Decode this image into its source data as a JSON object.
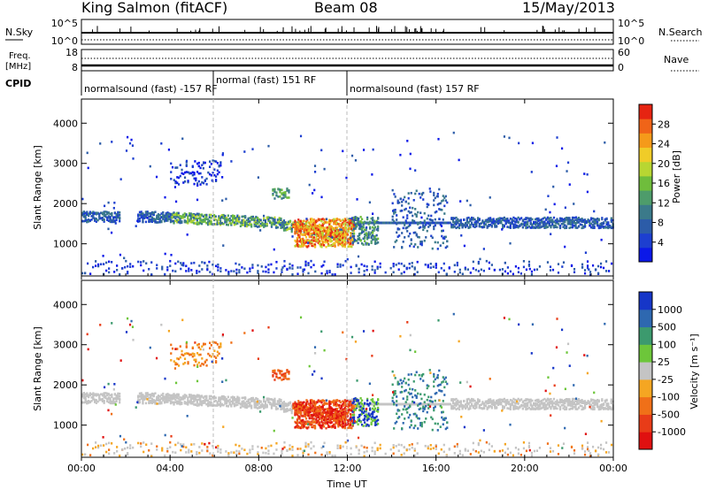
{
  "header": {
    "station": "King Salmon (fitACF)",
    "beam": "Beam 08",
    "date": "15/May/2013"
  },
  "panels": {
    "nsky": {
      "label": "N.Sky",
      "ticks_left": [
        "10^5",
        "10^0"
      ],
      "ticks_right": [
        "10^5",
        "10^0"
      ],
      "right_label": "N.Search"
    },
    "freq": {
      "label_line1": "Freq.",
      "label_line2": "[MHz]",
      "ticks_left": [
        "18",
        "8"
      ],
      "ticks_right": [
        "60",
        "0"
      ],
      "right_label": "Nave"
    },
    "cpid": {
      "label": "CPID",
      "segments": [
        {
          "text": "normalsound (fast) -157 RF",
          "start_hour": 0
        },
        {
          "text": "normal (fast) 151 RF",
          "start_hour": 6
        },
        {
          "text": "normalsound (fast) 157 RF",
          "start_hour": 12
        }
      ]
    }
  },
  "chart_data": [
    {
      "type": "heatmap",
      "name": "power",
      "ylabel": "Slant Range [km]",
      "ylim": [
        200,
        4600
      ],
      "yticks": [
        1000,
        2000,
        3000,
        4000
      ],
      "xlim": [
        0,
        24
      ],
      "colorbar": {
        "label": "Power [dB]",
        "range": [
          0,
          32
        ],
        "ticks": [
          "4",
          "8",
          "12",
          "16",
          "20",
          "24",
          "28"
        ],
        "colors": [
          "#0b18e8",
          "#1d3fd0",
          "#2c5ca8",
          "#3b7a8a",
          "#4e9c6b",
          "#6fbd3c",
          "#b8d632",
          "#f0cc28",
          "#f59a1a",
          "#f06418",
          "#e62412"
        ]
      }
    },
    {
      "type": "heatmap",
      "name": "velocity",
      "ylabel": "Slant Range [km]",
      "ylim": [
        200,
        4600
      ],
      "yticks": [
        1000,
        2000,
        3000,
        4000
      ],
      "xlim": [
        0,
        24
      ],
      "colorbar": {
        "label": "Velocity [m s⁻¹]",
        "ticks": [
          "1000",
          "500",
          "100",
          "25",
          "-25",
          "-100",
          "-500",
          "-1000"
        ],
        "colors": [
          "#1636c8",
          "#2e68b0",
          "#3c9a6e",
          "#6dc63a",
          "#c4c4c4",
          "#f5a622",
          "#f07018",
          "#e83c18",
          "#e01010"
        ]
      }
    }
  ],
  "xaxis": {
    "label": "Time UT",
    "ticks": [
      "00:00",
      "04:00",
      "08:00",
      "12:00",
      "16:00",
      "20:00",
      "00:00"
    ]
  }
}
